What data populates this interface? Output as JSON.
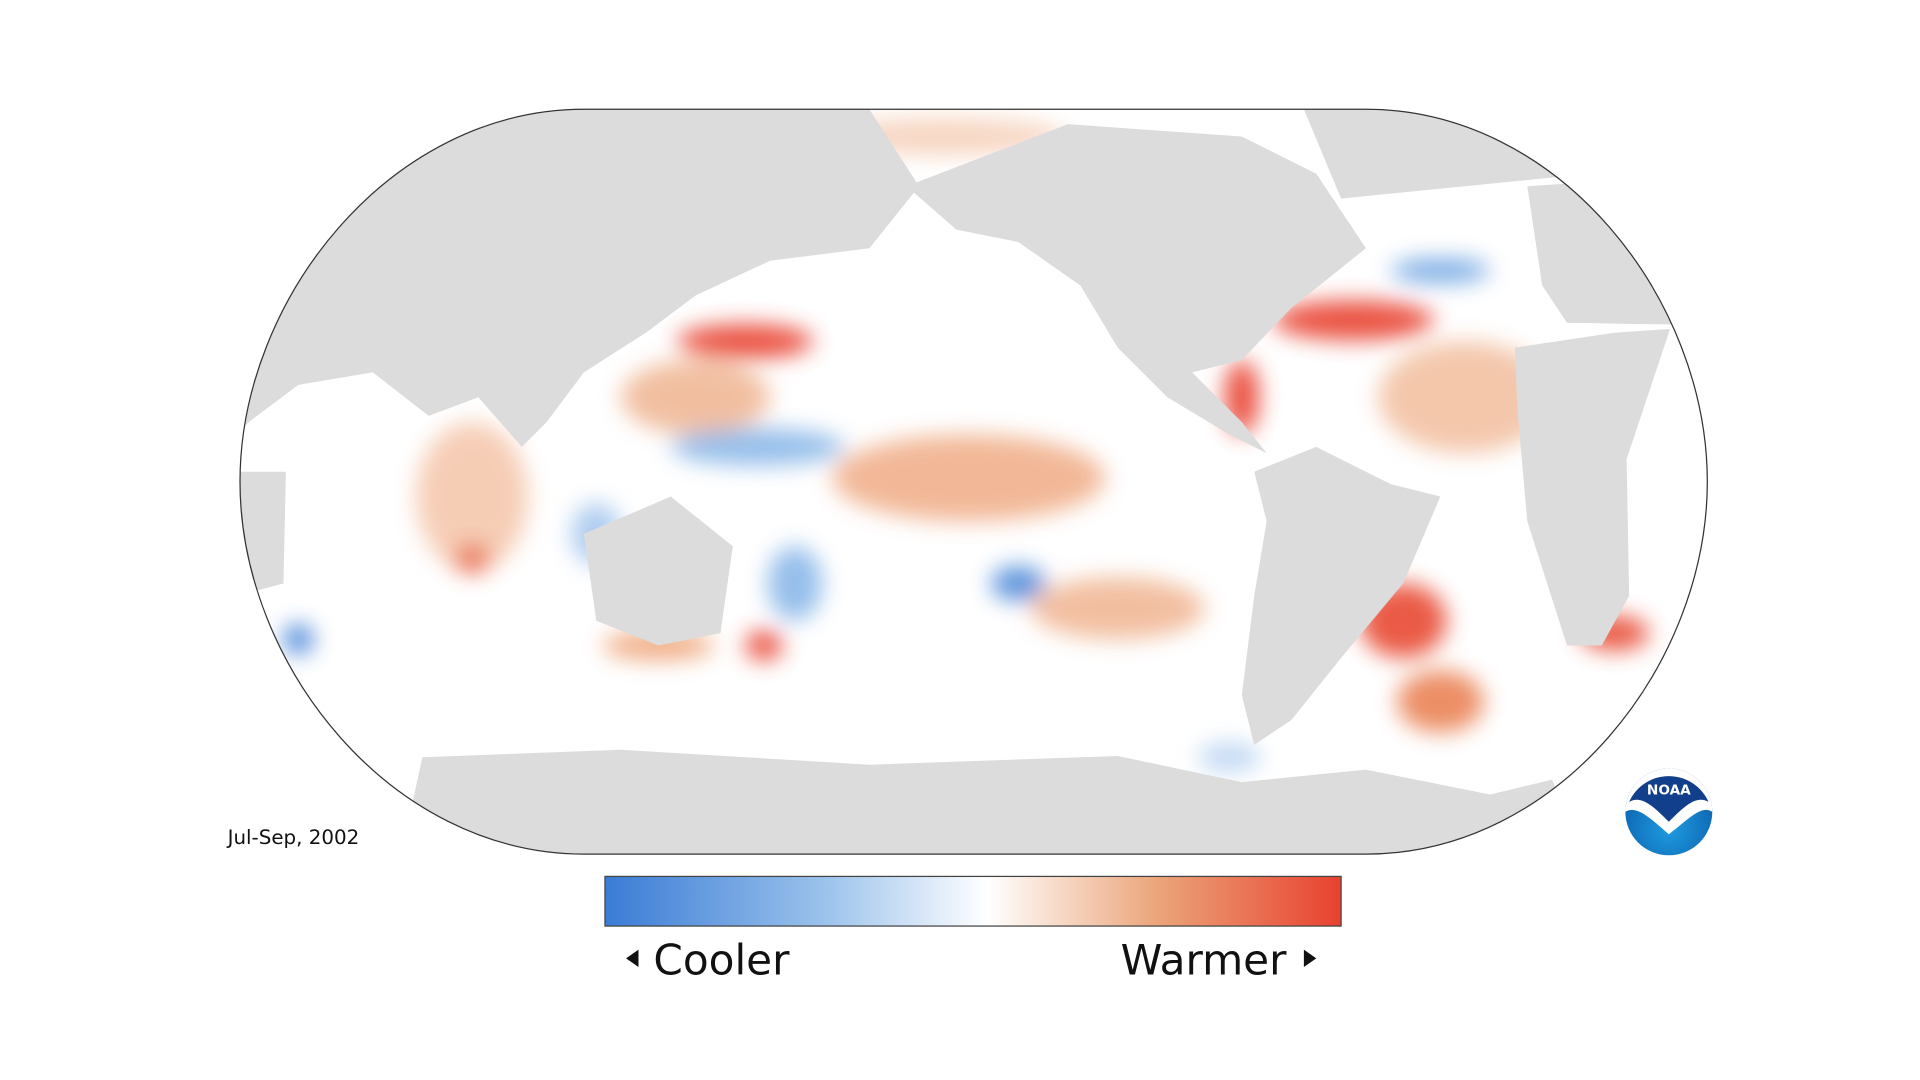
{
  "map": {
    "period": "Jul-Sep, 2002",
    "legend": {
      "low_label": "Cooler",
      "high_label": "Warmer"
    },
    "logo": "NOAA"
  }
}
